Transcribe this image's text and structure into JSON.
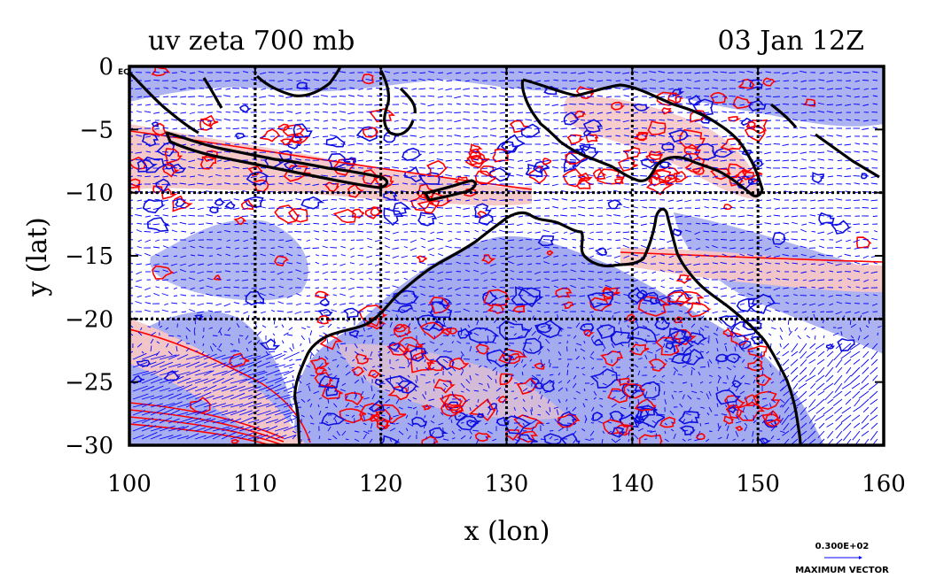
{
  "chart_data": {
    "type": "heatmap",
    "title": "uv zeta 700 mb",
    "date_label": "03 Jan 12Z",
    "xlabel": "x (lon)",
    "ylabel": "y (lat)",
    "xlim": [
      100,
      160
    ],
    "ylim": [
      -30,
      0
    ],
    "x_ticks": [
      100,
      110,
      120,
      130,
      140,
      150,
      160
    ],
    "y_ticks": [
      0,
      -5,
      -10,
      -15,
      -20,
      -25,
      -30
    ],
    "x_tick_labels": [
      "100",
      "110",
      "120",
      "130",
      "140",
      "150",
      "160"
    ],
    "y_tick_labels": [
      "0",
      "−5",
      "−10",
      "−15",
      "−20",
      "−25",
      "−30"
    ],
    "gridlines_lon": [
      110,
      120,
      130,
      140,
      150
    ],
    "gridlines_lat": [
      -10,
      -20
    ],
    "corner_label": "EQ",
    "vector_scale_label": "0.300E+02",
    "vector_caption": "MAXIMUM VECTOR",
    "colors": {
      "positive_fill": "#f5c6c6",
      "negative_fill": "#9fa6ee",
      "positive_contour": "#ff0000",
      "negative_contour": "#1010dd",
      "wind_vector": "#0000ff",
      "coastline": "#000000"
    },
    "fields": [
      "relative vorticity (zeta)",
      "wind vectors (u,v)"
    ]
  }
}
